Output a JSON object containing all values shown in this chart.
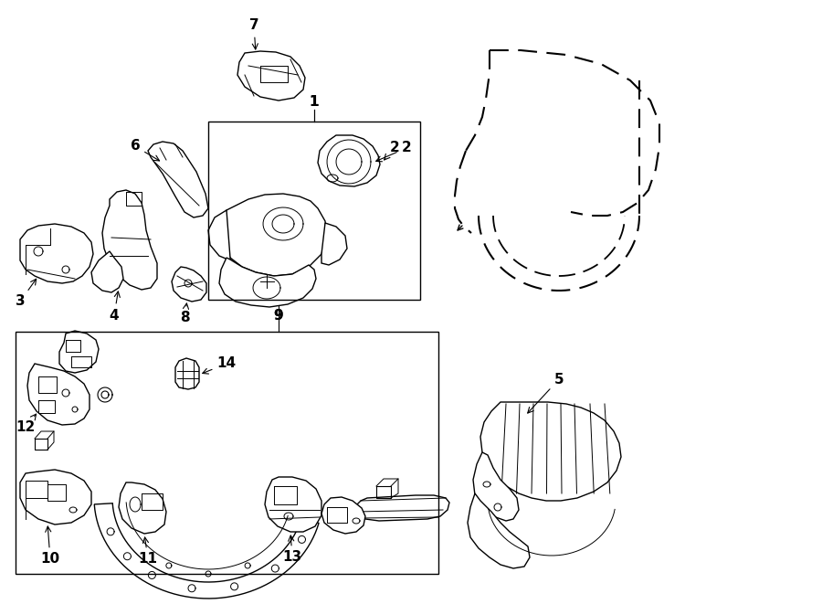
{
  "bg_color": "#ffffff",
  "line_color": "#000000",
  "lw": 1.0,
  "fig_width": 9.0,
  "fig_height": 6.61,
  "dpi": 100,
  "label_fontsize": 11
}
